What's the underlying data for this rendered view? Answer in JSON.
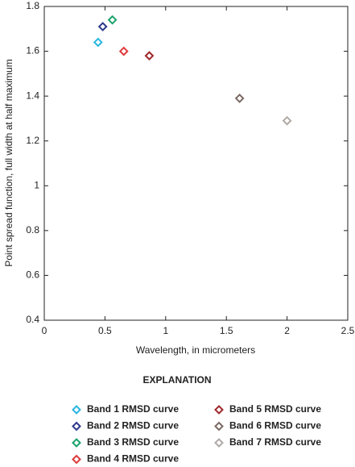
{
  "chart_data": {
    "type": "scatter",
    "xlabel": "Wavelength, in micrometers",
    "ylabel": "Point spread function, full width at half maximum",
    "legend_title": "EXPLANATION",
    "xlim": [
      0,
      2.5
    ],
    "xticks": [
      0,
      0.5,
      1,
      1.5,
      2,
      2.5
    ],
    "ylim": [
      0.4,
      1.8
    ],
    "yticks": [
      0.4,
      0.6,
      0.8,
      1,
      1.2,
      1.4,
      1.6,
      1.8
    ],
    "series": [
      {
        "name": "Band 1 RMSD curve",
        "color": "#29b6e0",
        "x": [
          0.443
        ],
        "y": [
          1.64
        ]
      },
      {
        "name": "Band 2 RMSD curve",
        "color": "#2e3a8c",
        "x": [
          0.482
        ],
        "y": [
          1.71
        ]
      },
      {
        "name": "Band 3 RMSD curve",
        "color": "#1aa36b",
        "x": [
          0.561
        ],
        "y": [
          1.74
        ]
      },
      {
        "name": "Band 4 RMSD curve",
        "color": "#e03a3a",
        "x": [
          0.655
        ],
        "y": [
          1.6
        ]
      },
      {
        "name": "Band 5 RMSD curve",
        "color": "#a0282c",
        "x": [
          0.865
        ],
        "y": [
          1.58
        ]
      },
      {
        "name": "Band 6 RMSD curve",
        "color": "#7b6a63",
        "x": [
          1.609
        ],
        "y": [
          1.39
        ]
      },
      {
        "name": "Band 7 RMSD curve",
        "color": "#b0aaa6",
        "x": [
          2.0
        ],
        "y": [
          1.29
        ]
      }
    ]
  }
}
